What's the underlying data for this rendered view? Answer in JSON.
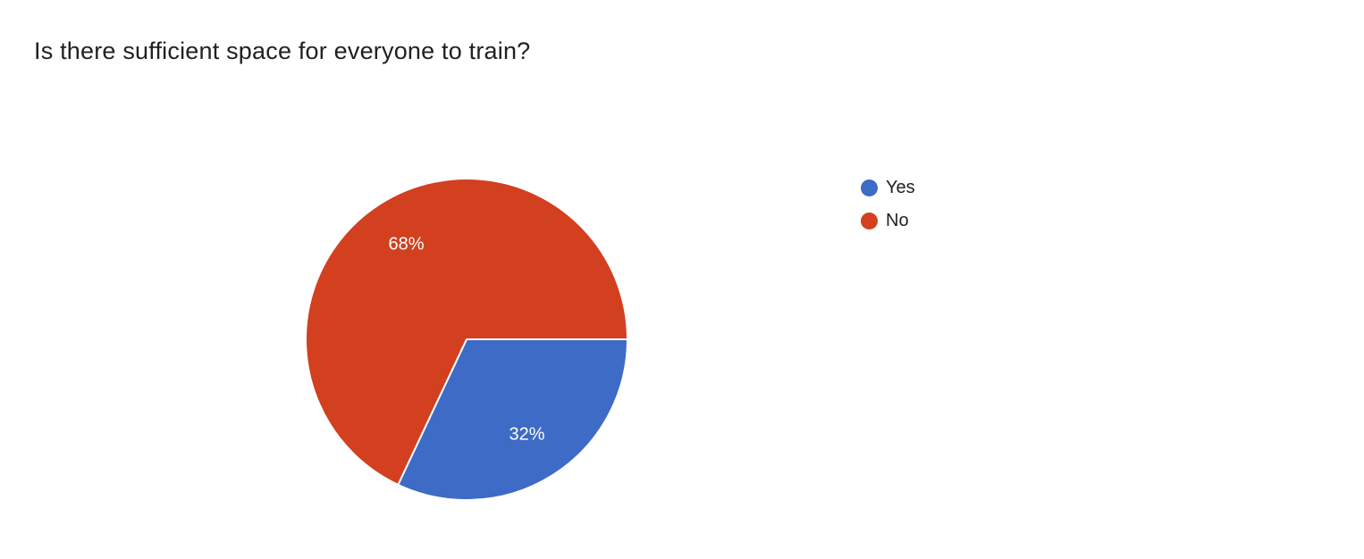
{
  "chart_data": {
    "type": "pie",
    "title": "Is there sufficient space for everyone to train?",
    "categories": [
      "Yes",
      "No"
    ],
    "values": [
      32,
      68
    ],
    "labels": [
      "32%",
      "68%"
    ],
    "colors": [
      "#3d6bc5",
      "#d24020"
    ],
    "slice_label_color": "#ffffff",
    "title_color": "#202124",
    "legend_position": "right",
    "legend_text_color": "#202124",
    "start_angle_deg": 0,
    "direction": "clockwise",
    "label_radius": 0.7,
    "grid": false
  }
}
